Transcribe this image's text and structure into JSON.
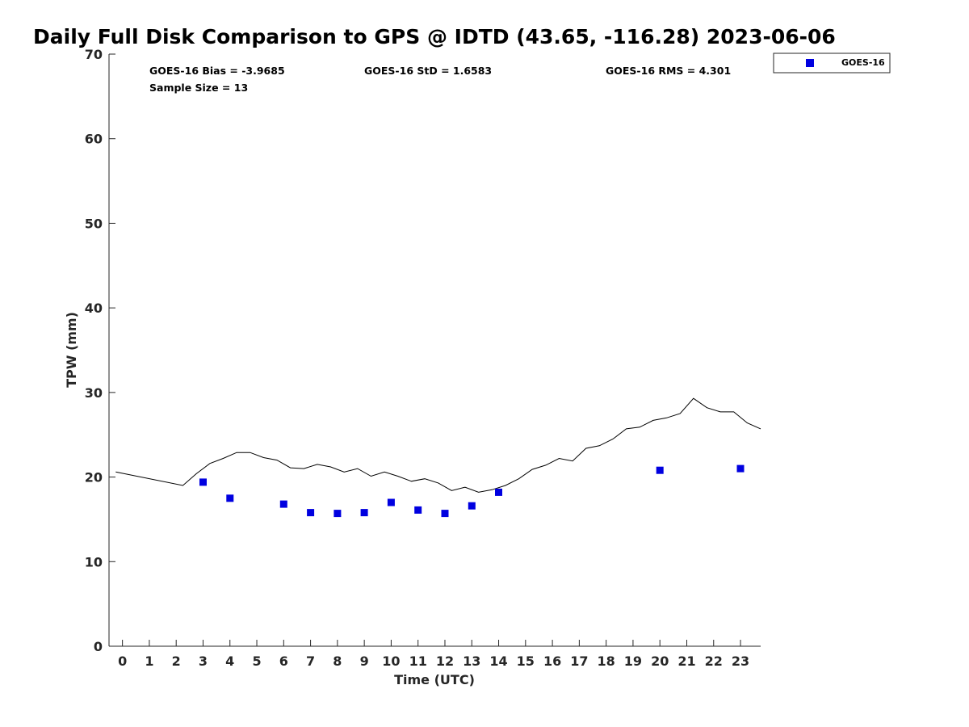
{
  "chart_data": {
    "type": "scatter",
    "title": "Daily Full Disk Comparison to GPS @ IDTD (43.65, -116.28) 2023-06-06",
    "xlabel": "Time (UTC)",
    "ylabel": "TPW (mm)",
    "xlim": [
      -0.5,
      23.75
    ],
    "ylim": [
      0,
      70
    ],
    "x_ticks": [
      0,
      1,
      2,
      3,
      4,
      5,
      6,
      7,
      8,
      9,
      10,
      11,
      12,
      13,
      14,
      15,
      16,
      17,
      18,
      19,
      20,
      21,
      22,
      23
    ],
    "y_ticks": [
      0,
      10,
      20,
      30,
      40,
      50,
      60,
      70
    ],
    "grid": false,
    "legend": {
      "placement": "top-right",
      "entries": [
        "GOES-16"
      ]
    },
    "stats": [
      "GOES-16 Bias = -3.9685",
      "GOES-16 StD = 1.6583",
      "GOES-16 RMS = 4.301",
      "Sample Size = 13"
    ],
    "series": [
      {
        "name": "GOES-16",
        "kind": "scatter",
        "color": "#0000e0",
        "x": [
          3,
          4,
          6,
          7,
          8,
          9,
          10,
          11,
          12,
          13,
          14,
          20,
          23
        ],
        "y": [
          19.4,
          17.5,
          16.8,
          15.8,
          15.7,
          15.8,
          17.0,
          16.1,
          15.7,
          16.6,
          18.2,
          20.8,
          21.0
        ]
      },
      {
        "kind": "line",
        "color": "#000000",
        "x": [
          -0.25,
          2.25,
          2.75,
          3.25,
          3.75,
          4.25,
          4.75,
          5.25,
          5.75,
          6.25,
          6.75,
          7.25,
          7.75,
          8.25,
          8.75,
          9.25,
          9.75,
          10.25,
          10.75,
          11.25,
          11.75,
          12.25,
          12.75,
          13.25,
          13.75,
          14.25,
          14.75,
          15.25,
          15.75,
          16.25,
          16.75,
          17.25,
          17.75,
          18.25,
          18.75,
          19.25,
          19.75,
          20.25,
          20.75,
          21.25,
          21.75,
          22.25,
          22.75,
          23.25,
          23.75
        ],
        "y": [
          20.6,
          19.0,
          20.4,
          21.6,
          22.2,
          22.9,
          22.9,
          22.3,
          22.0,
          21.1,
          21.0,
          21.5,
          21.2,
          20.6,
          21.0,
          20.1,
          20.6,
          20.1,
          19.5,
          19.8,
          19.3,
          18.4,
          18.8,
          18.2,
          18.5,
          19.0,
          19.8,
          20.9,
          21.4,
          22.2,
          21.9,
          23.4,
          23.7,
          24.5,
          25.7,
          25.9,
          26.7,
          27.0,
          27.5,
          29.3,
          28.2,
          27.7,
          27.7,
          26.4,
          25.7
        ]
      }
    ]
  }
}
